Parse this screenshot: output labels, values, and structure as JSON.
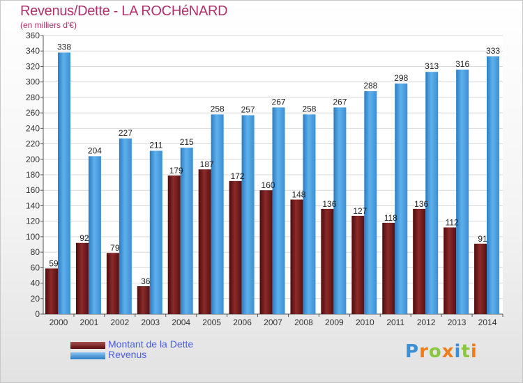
{
  "header": {
    "title": "Revenus/Dette - LA ROCHéNARD",
    "subtitle": "(en milliers d'€)"
  },
  "legend": {
    "items": [
      {
        "label": "Montant de la Dette",
        "color": "#7a1e1e"
      },
      {
        "label": "Revenus",
        "color": "#3d95df"
      }
    ]
  },
  "logo": {
    "text": "Proxiti",
    "letters": [
      {
        "ch": "P",
        "color": "#3a8fd6"
      },
      {
        "ch": "r",
        "color": "#f07d1a"
      },
      {
        "ch": "o",
        "color": "#8cc63f"
      },
      {
        "ch": "x",
        "color": "#f07d1a"
      },
      {
        "ch": "i",
        "color": "#3a8fd6"
      },
      {
        "ch": "t",
        "color": "#8cc63f"
      },
      {
        "ch": "i",
        "color": "#f07d1a"
      }
    ]
  },
  "chart_data": {
    "type": "bar",
    "title": "Revenus/Dette - LA ROCHéNARD",
    "subtitle": "(en milliers d'€)",
    "categories": [
      "2000",
      "2001",
      "2002",
      "2003",
      "2004",
      "2005",
      "2006",
      "2007",
      "2008",
      "2009",
      "2010",
      "2011",
      "2012",
      "2013",
      "2014"
    ],
    "series": [
      {
        "name": "Montant de la Dette",
        "color": "#7a1e1e",
        "values": [
          59,
          92,
          79,
          36,
          179,
          187,
          172,
          160,
          148,
          136,
          127,
          118,
          136,
          112,
          91
        ]
      },
      {
        "name": "Revenus",
        "color": "#3d95df",
        "values": [
          338,
          204,
          227,
          211,
          215,
          258,
          257,
          267,
          258,
          267,
          288,
          298,
          313,
          316,
          333
        ]
      }
    ],
    "ylim": [
      0,
      360
    ],
    "ytick_step": 20,
    "grid": true,
    "legend_position": "bottom-left"
  }
}
